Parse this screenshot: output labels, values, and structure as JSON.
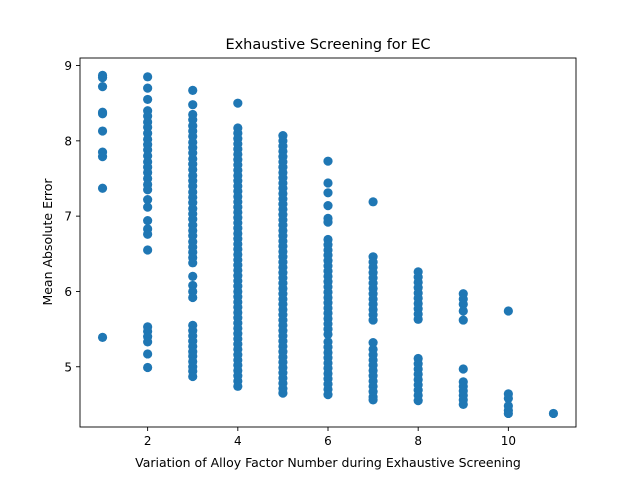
{
  "chart_data": {
    "type": "scatter",
    "title": "Exhaustive Screening for EC",
    "xlabel": "Variation of Alloy Factor Number during Exhaustive Screening",
    "ylabel": "Mean Absolute Error",
    "xlim": [
      0.5,
      11.5
    ],
    "ylim": [
      4.2,
      9.1
    ],
    "xticks": [
      2,
      4,
      6,
      8,
      10
    ],
    "yticks": [
      5,
      6,
      7,
      8,
      9
    ],
    "grid": false,
    "marker_color": "#1f77b4",
    "series": [
      {
        "points": [
          [
            1,
            8.87
          ],
          [
            1,
            8.84
          ],
          [
            1,
            8.72
          ],
          [
            1,
            8.38
          ],
          [
            1,
            8.36
          ],
          [
            1,
            8.13
          ],
          [
            1,
            7.85
          ],
          [
            1,
            7.79
          ],
          [
            1,
            7.37
          ],
          [
            1,
            5.39
          ],
          [
            2,
            8.85
          ],
          [
            2,
            8.7
          ],
          [
            2,
            8.55
          ],
          [
            2,
            8.4
          ],
          [
            2,
            8.33
          ],
          [
            2,
            8.25
          ],
          [
            2,
            8.18
          ],
          [
            2,
            8.1
          ],
          [
            2,
            8.02
          ],
          [
            2,
            7.95
          ],
          [
            2,
            7.88
          ],
          [
            2,
            7.8
          ],
          [
            2,
            7.72
          ],
          [
            2,
            7.65
          ],
          [
            2,
            7.58
          ],
          [
            2,
            7.5
          ],
          [
            2,
            7.42
          ],
          [
            2,
            7.35
          ],
          [
            2,
            7.22
          ],
          [
            2,
            7.12
          ],
          [
            2,
            6.94
          ],
          [
            2,
            6.83
          ],
          [
            2,
            6.76
          ],
          [
            2,
            6.55
          ],
          [
            2,
            5.53
          ],
          [
            2,
            5.47
          ],
          [
            2,
            5.4
          ],
          [
            2,
            5.33
          ],
          [
            2,
            5.17
          ],
          [
            2,
            4.99
          ],
          [
            3,
            8.67
          ],
          [
            3,
            8.48
          ],
          [
            3,
            8.35
          ],
          [
            3,
            8.28
          ],
          [
            3,
            8.2
          ],
          [
            3,
            8.13
          ],
          [
            3,
            8.06
          ],
          [
            3,
            7.98
          ],
          [
            3,
            7.91
          ],
          [
            3,
            7.84
          ],
          [
            3,
            7.76
          ],
          [
            3,
            7.69
          ],
          [
            3,
            7.62
          ],
          [
            3,
            7.54
          ],
          [
            3,
            7.47
          ],
          [
            3,
            7.4
          ],
          [
            3,
            7.32
          ],
          [
            3,
            7.25
          ],
          [
            3,
            7.18
          ],
          [
            3,
            7.1
          ],
          [
            3,
            7.03
          ],
          [
            3,
            6.96
          ],
          [
            3,
            6.88
          ],
          [
            3,
            6.81
          ],
          [
            3,
            6.74
          ],
          [
            3,
            6.66
          ],
          [
            3,
            6.59
          ],
          [
            3,
            6.52
          ],
          [
            3,
            6.45
          ],
          [
            3,
            6.38
          ],
          [
            3,
            6.2
          ],
          [
            3,
            6.08
          ],
          [
            3,
            6.0
          ],
          [
            3,
            5.92
          ],
          [
            3,
            5.55
          ],
          [
            3,
            5.48
          ],
          [
            3,
            5.41
          ],
          [
            3,
            5.34
          ],
          [
            3,
            5.27
          ],
          [
            3,
            5.2
          ],
          [
            3,
            5.14
          ],
          [
            3,
            5.07
          ],
          [
            3,
            5.0
          ],
          [
            3,
            4.94
          ],
          [
            3,
            4.87
          ],
          [
            4,
            8.5
          ],
          [
            4,
            8.17
          ],
          [
            4,
            8.1
          ],
          [
            4,
            8.03
          ],
          [
            4,
            7.96
          ],
          [
            4,
            7.89
          ],
          [
            4,
            7.82
          ],
          [
            4,
            7.75
          ],
          [
            4,
            7.68
          ],
          [
            4,
            7.61
          ],
          [
            4,
            7.54
          ],
          [
            4,
            7.47
          ],
          [
            4,
            7.4
          ],
          [
            4,
            7.33
          ],
          [
            4,
            7.26
          ],
          [
            4,
            7.19
          ],
          [
            4,
            7.12
          ],
          [
            4,
            7.05
          ],
          [
            4,
            6.98
          ],
          [
            4,
            6.91
          ],
          [
            4,
            6.84
          ],
          [
            4,
            6.77
          ],
          [
            4,
            6.7
          ],
          [
            4,
            6.63
          ],
          [
            4,
            6.56
          ],
          [
            4,
            6.49
          ],
          [
            4,
            6.42
          ],
          [
            4,
            6.35
          ],
          [
            4,
            6.28
          ],
          [
            4,
            6.21
          ],
          [
            4,
            6.14
          ],
          [
            4,
            6.07
          ],
          [
            4,
            6.0
          ],
          [
            4,
            5.93
          ],
          [
            4,
            5.86
          ],
          [
            4,
            5.79
          ],
          [
            4,
            5.72
          ],
          [
            4,
            5.65
          ],
          [
            4,
            5.58
          ],
          [
            4,
            5.51
          ],
          [
            4,
            5.44
          ],
          [
            4,
            5.37
          ],
          [
            4,
            5.3
          ],
          [
            4,
            5.23
          ],
          [
            4,
            5.16
          ],
          [
            4,
            5.09
          ],
          [
            4,
            5.02
          ],
          [
            4,
            4.95
          ],
          [
            4,
            4.88
          ],
          [
            4,
            4.81
          ],
          [
            4,
            4.74
          ],
          [
            5,
            8.07
          ],
          [
            5,
            8.0
          ],
          [
            5,
            7.93
          ],
          [
            5,
            7.86
          ],
          [
            5,
            7.79
          ],
          [
            5,
            7.72
          ],
          [
            5,
            7.65
          ],
          [
            5,
            7.58
          ],
          [
            5,
            7.51
          ],
          [
            5,
            7.44
          ],
          [
            5,
            7.37
          ],
          [
            5,
            7.3
          ],
          [
            5,
            7.23
          ],
          [
            5,
            7.16
          ],
          [
            5,
            7.09
          ],
          [
            5,
            7.02
          ],
          [
            5,
            6.95
          ],
          [
            5,
            6.88
          ],
          [
            5,
            6.81
          ],
          [
            5,
            6.74
          ],
          [
            5,
            6.67
          ],
          [
            5,
            6.6
          ],
          [
            5,
            6.53
          ],
          [
            5,
            6.46
          ],
          [
            5,
            6.39
          ],
          [
            5,
            6.32
          ],
          [
            5,
            6.25
          ],
          [
            5,
            6.18
          ],
          [
            5,
            6.11
          ],
          [
            5,
            6.04
          ],
          [
            5,
            5.97
          ],
          [
            5,
            5.9
          ],
          [
            5,
            5.83
          ],
          [
            5,
            5.76
          ],
          [
            5,
            5.69
          ],
          [
            5,
            5.62
          ],
          [
            5,
            5.55
          ],
          [
            5,
            5.48
          ],
          [
            5,
            5.41
          ],
          [
            5,
            5.34
          ],
          [
            5,
            5.27
          ],
          [
            5,
            5.2
          ],
          [
            5,
            5.13
          ],
          [
            5,
            5.06
          ],
          [
            5,
            4.99
          ],
          [
            5,
            4.92
          ],
          [
            5,
            4.85
          ],
          [
            5,
            4.78
          ],
          [
            5,
            4.71
          ],
          [
            5,
            4.65
          ],
          [
            6,
            7.73
          ],
          [
            6,
            7.44
          ],
          [
            6,
            7.31
          ],
          [
            6,
            7.14
          ],
          [
            6,
            6.97
          ],
          [
            6,
            6.92
          ],
          [
            6,
            6.69
          ],
          [
            6,
            6.62
          ],
          [
            6,
            6.55
          ],
          [
            6,
            6.48
          ],
          [
            6,
            6.41
          ],
          [
            6,
            6.34
          ],
          [
            6,
            6.27
          ],
          [
            6,
            6.2
          ],
          [
            6,
            6.13
          ],
          [
            6,
            6.06
          ],
          [
            6,
            5.99
          ],
          [
            6,
            5.92
          ],
          [
            6,
            5.85
          ],
          [
            6,
            5.78
          ],
          [
            6,
            5.71
          ],
          [
            6,
            5.64
          ],
          [
            6,
            5.57
          ],
          [
            6,
            5.5
          ],
          [
            6,
            5.43
          ],
          [
            6,
            5.33
          ],
          [
            6,
            5.26
          ],
          [
            6,
            5.19
          ],
          [
            6,
            5.12
          ],
          [
            6,
            5.05
          ],
          [
            6,
            4.98
          ],
          [
            6,
            4.91
          ],
          [
            6,
            4.84
          ],
          [
            6,
            4.77
          ],
          [
            6,
            4.7
          ],
          [
            6,
            4.63
          ],
          [
            7,
            7.19
          ],
          [
            7,
            6.46
          ],
          [
            7,
            6.39
          ],
          [
            7,
            6.32
          ],
          [
            7,
            6.25
          ],
          [
            7,
            6.18
          ],
          [
            7,
            6.11
          ],
          [
            7,
            6.04
          ],
          [
            7,
            5.97
          ],
          [
            7,
            5.9
          ],
          [
            7,
            5.83
          ],
          [
            7,
            5.76
          ],
          [
            7,
            5.69
          ],
          [
            7,
            5.62
          ],
          [
            7,
            5.32
          ],
          [
            7,
            5.23
          ],
          [
            7,
            5.16
          ],
          [
            7,
            5.09
          ],
          [
            7,
            5.02
          ],
          [
            7,
            4.95
          ],
          [
            7,
            4.88
          ],
          [
            7,
            4.81
          ],
          [
            7,
            4.74
          ],
          [
            7,
            4.67
          ],
          [
            7,
            4.6
          ],
          [
            7,
            4.56
          ],
          [
            8,
            6.26
          ],
          [
            8,
            6.19
          ],
          [
            8,
            6.12
          ],
          [
            8,
            6.05
          ],
          [
            8,
            5.98
          ],
          [
            8,
            5.91
          ],
          [
            8,
            5.84
          ],
          [
            8,
            5.77
          ],
          [
            8,
            5.7
          ],
          [
            8,
            5.63
          ],
          [
            8,
            5.11
          ],
          [
            8,
            5.04
          ],
          [
            8,
            4.97
          ],
          [
            8,
            4.9
          ],
          [
            8,
            4.83
          ],
          [
            8,
            4.76
          ],
          [
            8,
            4.69
          ],
          [
            8,
            4.62
          ],
          [
            8,
            4.55
          ],
          [
            9,
            5.97
          ],
          [
            9,
            5.9
          ],
          [
            9,
            5.83
          ],
          [
            9,
            5.74
          ],
          [
            9,
            5.62
          ],
          [
            9,
            4.97
          ],
          [
            9,
            4.8
          ],
          [
            9,
            4.74
          ],
          [
            9,
            4.68
          ],
          [
            9,
            4.62
          ],
          [
            9,
            4.56
          ],
          [
            9,
            4.5
          ],
          [
            10,
            5.74
          ],
          [
            10,
            4.64
          ],
          [
            10,
            4.58
          ],
          [
            10,
            4.48
          ],
          [
            10,
            4.42
          ],
          [
            10,
            4.38
          ],
          [
            11,
            4.38
          ]
        ]
      }
    ]
  }
}
